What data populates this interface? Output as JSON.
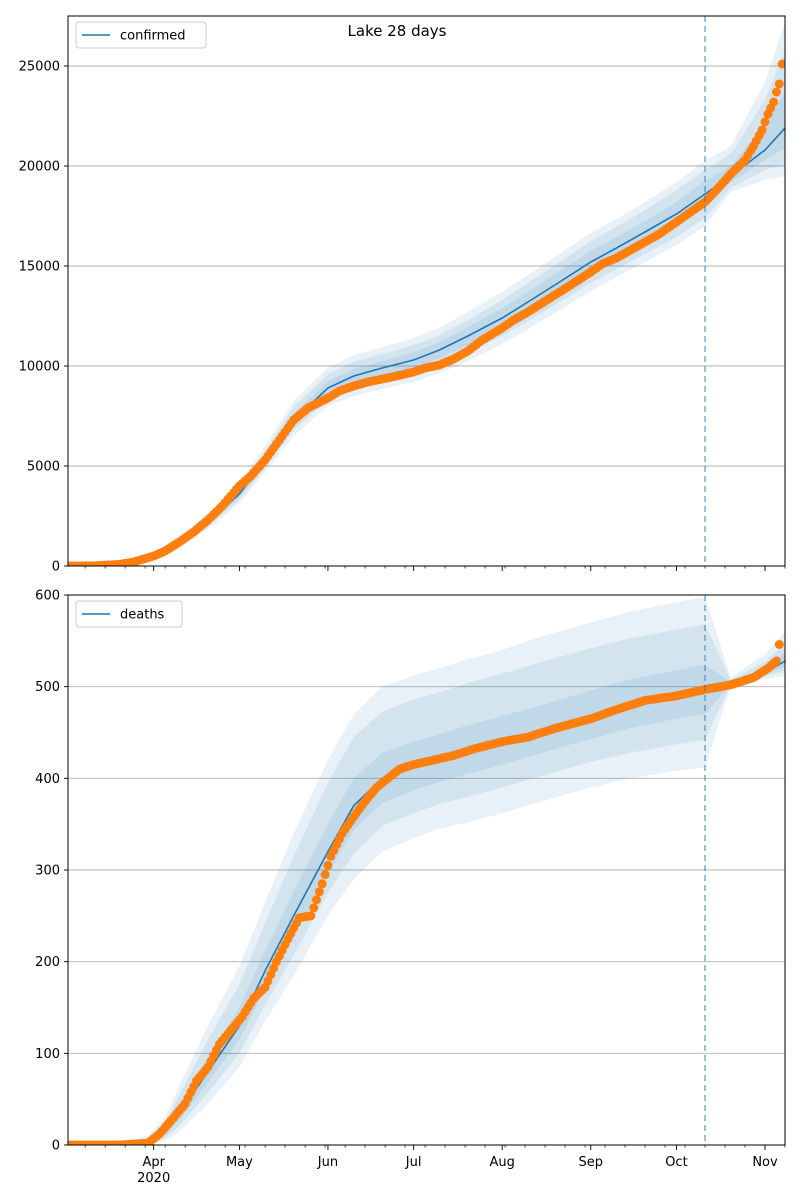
{
  "title": "Lake 28 days",
  "forecast_start": "2020-10-11",
  "colors": {
    "model": "#1f77b4",
    "observed": "#ff7f0e",
    "band": "#1f77b4",
    "grid": "#b0b0b0"
  },
  "chart_data": [
    {
      "type": "line",
      "legend": "confirmed",
      "legend_position": "top-left",
      "grid": "y",
      "xlim": [
        "2020-03-02",
        "2020-11-08"
      ],
      "ylim": [
        0,
        27500
      ],
      "yticks": [
        0,
        5000,
        10000,
        15000,
        20000,
        25000
      ],
      "xticks": [
        {
          "date": "2020-04-01",
          "label": "Apr",
          "sublabel": "2020"
        },
        {
          "date": "2020-05-01",
          "label": "May",
          "sublabel": ""
        },
        {
          "date": "2020-06-01",
          "label": "Jun",
          "sublabel": ""
        },
        {
          "date": "2020-07-01",
          "label": "Jul",
          "sublabel": ""
        },
        {
          "date": "2020-08-01",
          "label": "Aug",
          "sublabel": ""
        },
        {
          "date": "2020-09-01",
          "label": "Sep",
          "sublabel": ""
        },
        {
          "date": "2020-10-01",
          "label": "Oct",
          "sublabel": ""
        },
        {
          "date": "2020-11-01",
          "label": "Nov",
          "sublabel": ""
        }
      ],
      "model": {
        "x": [
          "2020-03-02",
          "2020-03-15",
          "2020-03-25",
          "2020-04-01",
          "2020-04-10",
          "2020-04-20",
          "2020-05-01",
          "2020-05-10",
          "2020-05-20",
          "2020-06-01",
          "2020-06-10",
          "2020-06-20",
          "2020-07-01",
          "2020-07-10",
          "2020-07-20",
          "2020-08-01",
          "2020-08-10",
          "2020-08-20",
          "2020-09-01",
          "2020-09-10",
          "2020-09-20",
          "2020-10-01",
          "2020-10-11",
          "2020-10-20",
          "2020-11-01",
          "2020-11-08"
        ],
        "y": [
          0,
          10,
          150,
          500,
          1200,
          2200,
          3600,
          5300,
          7300,
          8900,
          9500,
          9900,
          10300,
          10800,
          11500,
          12400,
          13200,
          14100,
          15200,
          15900,
          16700,
          17600,
          18600,
          19500,
          20800,
          21900
        ],
        "bands": [
          {
            "lo": [
              0,
              0,
              90,
              380,
              950,
              1850,
              3150,
              4700,
              6500,
              8000,
              8500,
              8850,
              9200,
              9650,
              10250,
              11100,
              11850,
              12700,
              13750,
              14450,
              15200,
              16050,
              17000,
              18700,
              19300,
              19500
            ],
            "hi": [
              0,
              30,
              230,
              650,
              1500,
              2600,
              4150,
              6000,
              8250,
              9900,
              10550,
              10950,
              11400,
              11900,
              12700,
              13700,
              14550,
              15500,
              16650,
              17350,
              18200,
              19200,
              20250,
              21000,
              24200,
              27200
            ]
          },
          {
            "lo": [
              0,
              0,
              110,
              420,
              1030,
              1970,
              3300,
              4900,
              6800,
              8300,
              8850,
              9200,
              9550,
              10000,
              10650,
              11500,
              12250,
              13100,
              14150,
              14850,
              15600,
              16450,
              17400,
              18900,
              19800,
              20100
            ],
            "hi": [
              0,
              25,
              200,
              590,
              1400,
              2450,
              3950,
              5750,
              7950,
              9600,
              10200,
              10600,
              11050,
              11550,
              12300,
              13300,
              14150,
              15100,
              16250,
              16950,
              17800,
              18800,
              19800,
              20600,
              23300,
              25800
            ]
          },
          {
            "lo": [
              0,
              0,
              130,
              460,
              1110,
              2080,
              3450,
              5100,
              7050,
              8600,
              9150,
              9550,
              9920,
              10400,
              11050,
              11950,
              12700,
              13600,
              14650,
              15350,
              16150,
              17000,
              17950,
              19200,
              20300,
              20900
            ],
            "hi": [
              0,
              18,
              175,
              540,
              1300,
              2330,
              3780,
              5520,
              7600,
              9250,
              9850,
              10250,
              10700,
              11200,
              11950,
              12900,
              13700,
              14650,
              15750,
              16450,
              17250,
              18200,
              19250,
              20000,
              22100,
              23700
            ]
          }
        ]
      },
      "observed": {
        "x": [
          "2020-03-02",
          "2020-03-10",
          "2020-03-20",
          "2020-03-25",
          "2020-04-01",
          "2020-04-05",
          "2020-04-10",
          "2020-04-15",
          "2020-04-20",
          "2020-04-25",
          "2020-05-01",
          "2020-05-05",
          "2020-05-10",
          "2020-05-15",
          "2020-05-20",
          "2020-05-25",
          "2020-06-01",
          "2020-06-05",
          "2020-06-10",
          "2020-06-15",
          "2020-06-20",
          "2020-06-25",
          "2020-07-01",
          "2020-07-05",
          "2020-07-10",
          "2020-07-15",
          "2020-07-20",
          "2020-07-25",
          "2020-08-01",
          "2020-08-05",
          "2020-08-10",
          "2020-08-15",
          "2020-08-20",
          "2020-08-25",
          "2020-09-01",
          "2020-09-05",
          "2020-09-10",
          "2020-09-15",
          "2020-09-20",
          "2020-09-25",
          "2020-10-01",
          "2020-10-05",
          "2020-10-11",
          "2020-10-15",
          "2020-10-20",
          "2020-10-25",
          "2020-10-28",
          "2020-10-31",
          "2020-11-02",
          "2020-11-04",
          "2020-11-05",
          "2020-11-06",
          "2020-11-07"
        ],
        "y": [
          0,
          5,
          80,
          200,
          500,
          750,
          1200,
          1700,
          2300,
          3000,
          4000,
          4500,
          5300,
          6300,
          7300,
          7900,
          8400,
          8750,
          9000,
          9200,
          9350,
          9500,
          9700,
          9900,
          10050,
          10350,
          10750,
          11300,
          11900,
          12300,
          12700,
          13150,
          13600,
          14050,
          14700,
          15100,
          15400,
          15800,
          16200,
          16600,
          17200,
          17600,
          18200,
          18800,
          19600,
          20300,
          21000,
          21800,
          22600,
          23200,
          23700,
          24100,
          25100
        ]
      },
      "forecast_line": "2020-10-11"
    },
    {
      "type": "line",
      "legend": "deaths",
      "legend_position": "top-left",
      "grid": "y",
      "xlim": [
        "2020-03-02",
        "2020-11-08"
      ],
      "ylim": [
        0,
        600
      ],
      "yticks": [
        0,
        100,
        200,
        300,
        400,
        500,
        600
      ],
      "xticks": [
        {
          "date": "2020-04-01",
          "label": "Apr",
          "sublabel": "2020"
        },
        {
          "date": "2020-05-01",
          "label": "May",
          "sublabel": ""
        },
        {
          "date": "2020-06-01",
          "label": "Jun",
          "sublabel": ""
        },
        {
          "date": "2020-07-01",
          "label": "Jul",
          "sublabel": ""
        },
        {
          "date": "2020-08-01",
          "label": "Aug",
          "sublabel": ""
        },
        {
          "date": "2020-09-01",
          "label": "Sep",
          "sublabel": ""
        },
        {
          "date": "2020-10-01",
          "label": "Oct",
          "sublabel": ""
        },
        {
          "date": "2020-11-01",
          "label": "Nov",
          "sublabel": ""
        }
      ],
      "model": {
        "x": [
          "2020-03-02",
          "2020-03-20",
          "2020-03-30",
          "2020-04-05",
          "2020-04-10",
          "2020-04-20",
          "2020-05-01",
          "2020-05-10",
          "2020-05-20",
          "2020-06-01",
          "2020-06-10",
          "2020-06-20",
          "2020-07-01",
          "2020-07-10",
          "2020-07-20",
          "2020-08-01",
          "2020-08-15",
          "2020-09-01",
          "2020-09-15",
          "2020-10-01",
          "2020-10-11",
          "2020-10-20",
          "2020-11-01",
          "2020-11-08"
        ],
        "y": [
          0,
          0,
          3,
          15,
          35,
          80,
          130,
          190,
          250,
          320,
          370,
          400,
          412,
          420,
          430,
          440,
          450,
          465,
          478,
          490,
          497,
          503,
          515,
          528
        ],
        "bands": [
          {
            "lo": [
              0,
              0,
              0,
              5,
              15,
              45,
              85,
              135,
              185,
              250,
              290,
              320,
              335,
              345,
              352,
              362,
              375,
              390,
              400,
              408,
              412,
              500,
              508,
              512
            ],
            "hi": [
              0,
              2,
              10,
              30,
              65,
              130,
              195,
              265,
              340,
              420,
              470,
              500,
              512,
              520,
              530,
              540,
              555,
              570,
              582,
              592,
              598,
              510,
              535,
              560
            ]
          },
          {
            "lo": [
              0,
              0,
              1,
              8,
              21,
              57,
              100,
              153,
              207,
              275,
              318,
              348,
              362,
              372,
              380,
              390,
              403,
              418,
              428,
              437,
              442,
              502,
              511,
              518
            ],
            "hi": [
              0,
              1,
              8,
              25,
              55,
              115,
              175,
              242,
              315,
              395,
              445,
              473,
              486,
              494,
              504,
              514,
              527,
              542,
              553,
              562,
              568,
              507,
              527,
              548
            ]
          },
          {
            "lo": [
              0,
              0,
              2,
              11,
              27,
              68,
              115,
              170,
              228,
              297,
              344,
              373,
              387,
              396,
              405,
              415,
              428,
              443,
              455,
              465,
              470,
              503,
              513,
              522
            ],
            "hi": [
              0,
              1,
              5,
              20,
              45,
              96,
              150,
              212,
              277,
              350,
              400,
              428,
              440,
              448,
              458,
              468,
              480,
              496,
              508,
              518,
              524,
              505,
              520,
              538
            ]
          }
        ]
      },
      "observed": {
        "x": [
          "2020-03-02",
          "2020-03-20",
          "2020-03-30",
          "2020-04-03",
          "2020-04-08",
          "2020-04-12",
          "2020-04-16",
          "2020-04-20",
          "2020-04-24",
          "2020-04-28",
          "2020-05-02",
          "2020-05-06",
          "2020-05-10",
          "2020-05-14",
          "2020-05-18",
          "2020-05-22",
          "2020-05-26",
          "2020-05-30",
          "2020-06-02",
          "2020-06-06",
          "2020-06-10",
          "2020-06-14",
          "2020-06-18",
          "2020-06-22",
          "2020-06-26",
          "2020-07-01",
          "2020-07-08",
          "2020-07-15",
          "2020-07-22",
          "2020-08-01",
          "2020-08-10",
          "2020-08-20",
          "2020-09-01",
          "2020-09-10",
          "2020-09-20",
          "2020-10-01",
          "2020-10-11",
          "2020-10-20",
          "2020-10-28",
          "2020-11-02",
          "2020-11-05",
          "2020-11-06"
        ],
        "y": [
          0,
          0,
          2,
          12,
          30,
          45,
          70,
          85,
          110,
          125,
          140,
          160,
          172,
          200,
          225,
          248,
          250,
          285,
          315,
          340,
          358,
          375,
          390,
          400,
          410,
          415,
          420,
          425,
          432,
          440,
          445,
          455,
          465,
          475,
          485,
          490,
          497,
          502,
          510,
          520,
          528,
          546
        ]
      },
      "forecast_line": "2020-10-11"
    }
  ]
}
